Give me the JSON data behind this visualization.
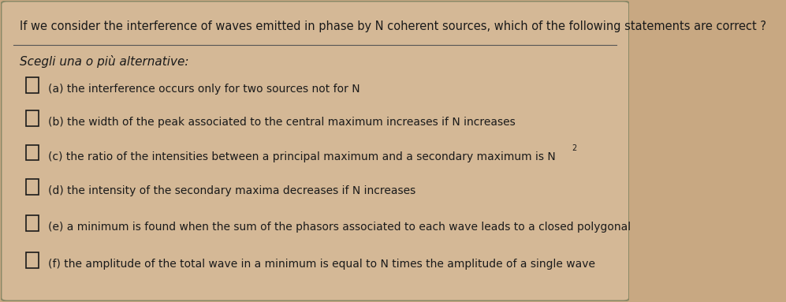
{
  "bg_color": "#c8a882",
  "card_color": "#d4b896",
  "title": "If we consider the interference of waves emitted in phase by N coherent sources, which of the following statements are correct ?",
  "subtitle": "Scegli una o più alternative:",
  "options": [
    "(a) the interference occurs only for two sources not for N",
    "(b) the width of the peak associated to the central maximum increases if N increases",
    "(c) the ratio of the intensities between a principal maximum and a secondary maximum is N",
    "(d) the intensity of the secondary maxima decreases if N increases",
    "(e) a minimum is found when the sum of the phasors associated to each wave leads to a closed polygonal",
    "(f) the amplitude of the total wave in a minimum is equal to N times the amplitude of a single wave"
  ],
  "superscript_option_index": 2,
  "superscript_text": "2",
  "title_fontsize": 10.5,
  "subtitle_fontsize": 11,
  "option_fontsize": 10,
  "text_color": "#1a1a1a",
  "checkbox_color": "#1a1a1a",
  "divider_color": "#555555"
}
